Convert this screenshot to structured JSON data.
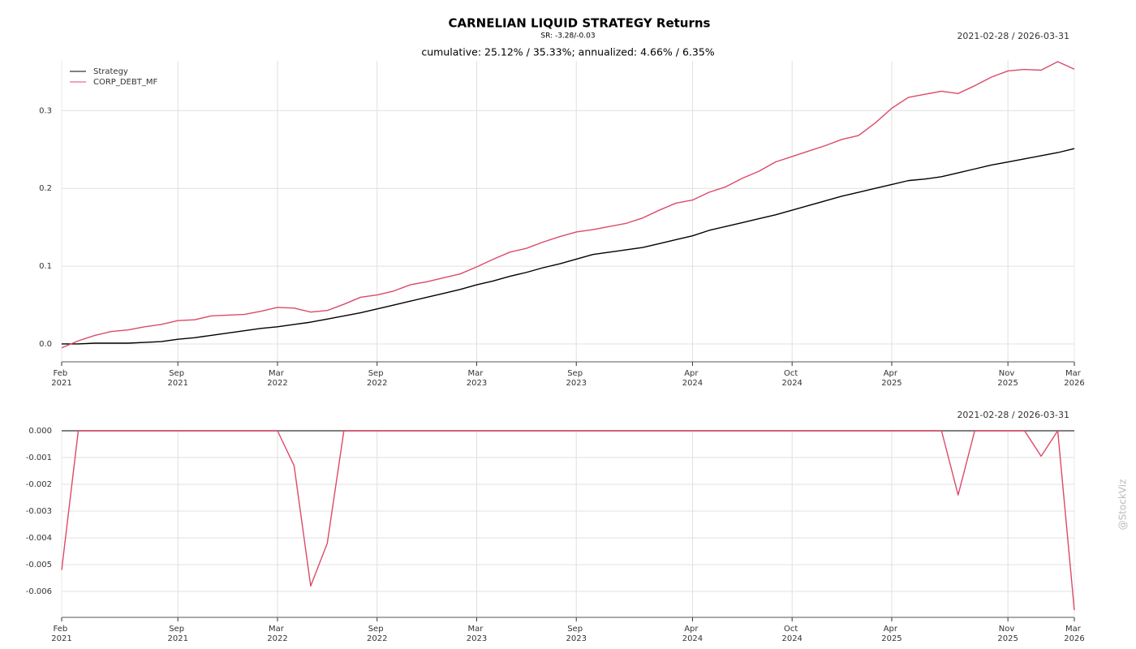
{
  "chart_data": [
    {
      "type": "line",
      "title": "CARNELIAN LIQUID STRATEGY Returns",
      "subtitle": "SR: -3.28/-0.03",
      "annotation": "cumulative: 25.12% / 35.33%; annualized: 4.66% / 6.35%",
      "date_range": "2021-02-28 / 2026-03-31",
      "watermark": "@StockViz",
      "legend": "upper left",
      "grid": true,
      "x": [
        "2021-02",
        "2021-03",
        "2021-04",
        "2021-05",
        "2021-06",
        "2021-07",
        "2021-08",
        "2021-09",
        "2021-10",
        "2021-11",
        "2021-12",
        "2022-01",
        "2022-02",
        "2022-03",
        "2022-04",
        "2022-05",
        "2022-06",
        "2022-07",
        "2022-08",
        "2022-09",
        "2022-10",
        "2022-11",
        "2022-12",
        "2023-01",
        "2023-02",
        "2023-03",
        "2023-04",
        "2023-05",
        "2023-06",
        "2023-07",
        "2023-08",
        "2023-09",
        "2023-10",
        "2023-11",
        "2023-12",
        "2024-01",
        "2024-02",
        "2024-03",
        "2024-04",
        "2024-05",
        "2024-06",
        "2024-07",
        "2024-08",
        "2024-09",
        "2024-10",
        "2024-11",
        "2024-12",
        "2025-01",
        "2025-02",
        "2025-03",
        "2025-04",
        "2025-05",
        "2025-06",
        "2025-07",
        "2025-08",
        "2025-09",
        "2025-10",
        "2025-11",
        "2025-12",
        "2026-01",
        "2026-02",
        "2026-03"
      ],
      "xlim": [
        "2021-02",
        "2026-03"
      ],
      "xticks": [
        {
          "value": "2021-02",
          "label": "Feb 2021"
        },
        {
          "value": "2021-09",
          "label": "Sep 2021"
        },
        {
          "value": "2022-03",
          "label": "Mar 2022"
        },
        {
          "value": "2022-09",
          "label": "Sep 2022"
        },
        {
          "value": "2023-03",
          "label": "Mar 2023"
        },
        {
          "value": "2023-09",
          "label": "Sep 2023"
        },
        {
          "value": "2024-04",
          "label": "Apr 2024"
        },
        {
          "value": "2024-10",
          "label": "Oct 2024"
        },
        {
          "value": "2025-04",
          "label": "Apr 2025"
        },
        {
          "value": "2025-11",
          "label": "Nov 2025"
        },
        {
          "value": "2026-03",
          "label": "Mar 2026"
        }
      ],
      "ylim": [
        -0.023,
        0.364
      ],
      "yticks": [
        {
          "value": 0,
          "label": "0.0"
        },
        0.1,
        0.2,
        0.3
      ],
      "series": [
        {
          "name": "Strategy",
          "color": "#000000",
          "values": [
            0,
            0,
            0.001,
            0.001,
            0.001,
            0.002,
            0.003,
            0.006,
            0.008,
            0.011,
            0.014,
            0.017,
            0.02,
            0.022,
            0.025,
            0.028,
            0.032,
            0.036,
            0.04,
            0.045,
            0.05,
            0.055,
            0.06,
            0.065,
            0.07,
            0.076,
            0.081,
            0.087,
            0.092,
            0.098,
            0.103,
            0.109,
            0.115,
            0.118,
            0.121,
            0.124,
            0.129,
            0.134,
            0.139,
            0.146,
            0.151,
            0.156,
            0.161,
            0.166,
            0.172,
            0.178,
            0.184,
            0.19,
            0.195,
            0.2,
            0.205,
            0.21,
            0.212,
            0.215,
            0.22,
            0.225,
            0.23,
            0.234,
            0.238,
            0.242,
            0.246,
            0.2512
          ]
        },
        {
          "name": "CORP_DEBT_MF",
          "color": "#dc4a68",
          "values": [
            -0.005,
            0.004,
            0.011,
            0.016,
            0.018,
            0.022,
            0.025,
            0.03,
            0.031,
            0.036,
            0.037,
            0.038,
            0.042,
            0.047,
            0.046,
            0.041,
            0.043,
            0.051,
            0.06,
            0.063,
            0.068,
            0.076,
            0.08,
            0.085,
            0.09,
            0.099,
            0.109,
            0.118,
            0.123,
            0.131,
            0.138,
            0.144,
            0.147,
            0.151,
            0.155,
            0.162,
            0.172,
            0.181,
            0.185,
            0.195,
            0.202,
            0.213,
            0.222,
            0.234,
            0.241,
            0.248,
            0.255,
            0.263,
            0.268,
            0.284,
            0.303,
            0.317,
            0.321,
            0.325,
            0.322,
            0.332,
            0.343,
            0.351,
            0.353,
            0.352,
            0.363,
            0.3533
          ]
        }
      ]
    },
    {
      "type": "line",
      "date_range": "2021-02-28 / 2026-03-31",
      "grid": true,
      "x": [
        "2021-02",
        "2021-03",
        "2021-04",
        "2021-05",
        "2021-06",
        "2021-07",
        "2021-08",
        "2021-09",
        "2021-10",
        "2021-11",
        "2021-12",
        "2022-01",
        "2022-02",
        "2022-03",
        "2022-04",
        "2022-05",
        "2022-06",
        "2022-07",
        "2022-08",
        "2022-09",
        "2022-10",
        "2022-11",
        "2022-12",
        "2023-01",
        "2023-02",
        "2023-03",
        "2023-04",
        "2023-05",
        "2023-06",
        "2023-07",
        "2023-08",
        "2023-09",
        "2023-10",
        "2023-11",
        "2023-12",
        "2024-01",
        "2024-02",
        "2024-03",
        "2024-04",
        "2024-05",
        "2024-06",
        "2024-07",
        "2024-08",
        "2024-09",
        "2024-10",
        "2024-11",
        "2024-12",
        "2025-01",
        "2025-02",
        "2025-03",
        "2025-04",
        "2025-05",
        "2025-06",
        "2025-07",
        "2025-08",
        "2025-09",
        "2025-10",
        "2025-11",
        "2025-12",
        "2026-01",
        "2026-02",
        "2026-03"
      ],
      "xlim": [
        "2021-02",
        "2026-03"
      ],
      "xticks": [
        {
          "value": "2021-02",
          "label": "Feb 2021"
        },
        {
          "value": "2021-09",
          "label": "Sep 2021"
        },
        {
          "value": "2022-03",
          "label": "Mar 2022"
        },
        {
          "value": "2022-09",
          "label": "Sep 2022"
        },
        {
          "value": "2023-03",
          "label": "Mar 2023"
        },
        {
          "value": "2023-09",
          "label": "Sep 2023"
        },
        {
          "value": "2024-04",
          "label": "Apr 2024"
        },
        {
          "value": "2024-10",
          "label": "Oct 2024"
        },
        {
          "value": "2025-04",
          "label": "Apr 2025"
        },
        {
          "value": "2025-11",
          "label": "Nov 2025"
        },
        {
          "value": "2026-03",
          "label": "Mar 2026"
        }
      ],
      "ylim": [
        -0.00697,
        0
      ],
      "yticks": [
        {
          "value": 0,
          "label": "0.000"
        },
        -0.001,
        -0.002,
        -0.003,
        -0.004,
        -0.005,
        -0.006
      ],
      "series": [
        {
          "name": "Strategy",
          "color": "#555555",
          "values": [
            0,
            0,
            0,
            0,
            0,
            0,
            0,
            0,
            0,
            0,
            0,
            0,
            0,
            0,
            0,
            0,
            0,
            0,
            0,
            0,
            0,
            0,
            0,
            0,
            0,
            0,
            0,
            0,
            0,
            0,
            0,
            0,
            0,
            0,
            0,
            0,
            0,
            0,
            0,
            0,
            0,
            0,
            0,
            0,
            0,
            0,
            0,
            0,
            0,
            0,
            0,
            0,
            0,
            0,
            0,
            0,
            0,
            0,
            0,
            0,
            0,
            0
          ]
        },
        {
          "name": "CORP_DEBT_MF",
          "color": "#dc4a68",
          "values": [
            -0.0052,
            0,
            0,
            0,
            0,
            0,
            0,
            0,
            0,
            0,
            0,
            0,
            0,
            0,
            -0.0013,
            -0.0058,
            -0.0042,
            0,
            0,
            0,
            0,
            0,
            0,
            0,
            0,
            0,
            0,
            0,
            0,
            0,
            0,
            0,
            0,
            0,
            0,
            0,
            0,
            0,
            0,
            0,
            0,
            0,
            0,
            0,
            0,
            0,
            0,
            0,
            0,
            0,
            0,
            0,
            0,
            0,
            -0.0024,
            0,
            0,
            0,
            0,
            -0.00095,
            0,
            -0.0067
          ]
        }
      ]
    }
  ]
}
